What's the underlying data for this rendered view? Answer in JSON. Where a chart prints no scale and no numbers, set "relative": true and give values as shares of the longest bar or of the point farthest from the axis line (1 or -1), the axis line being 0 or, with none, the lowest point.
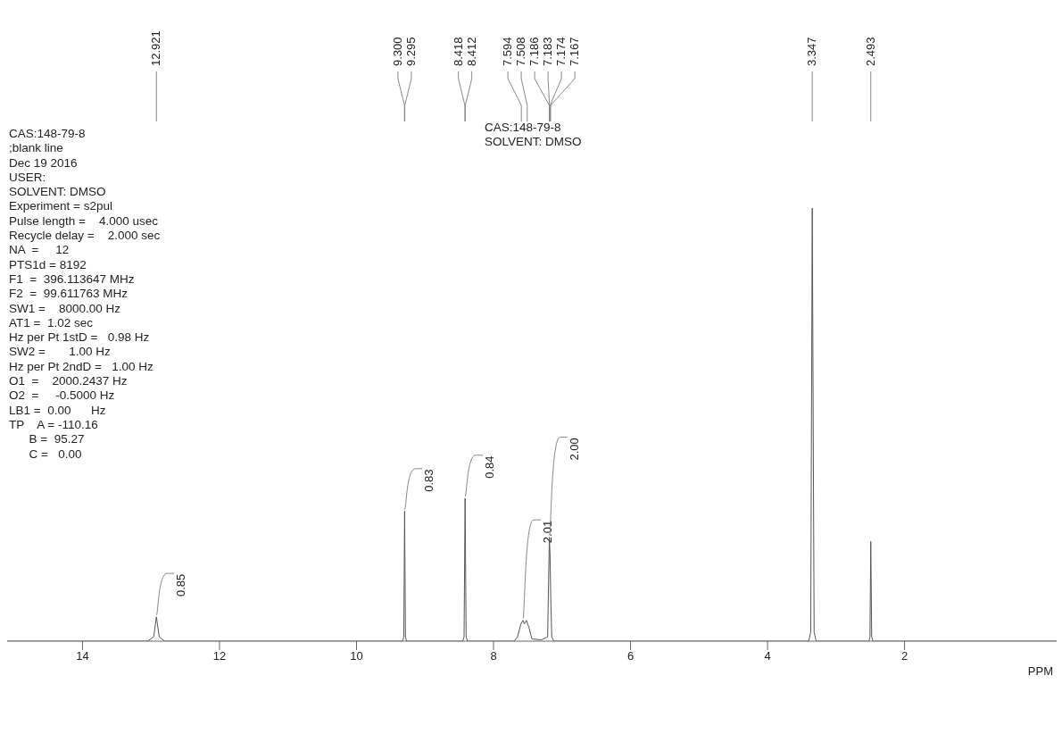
{
  "chart_data": {
    "type": "line",
    "title": "CAS:148-79-8",
    "subtitle": "SOLVENT: DMSO",
    "xlabel": "PPM",
    "relative": true,
    "marker": "none",
    "xlim": [
      15.1,
      -0.22
    ],
    "xticks": [
      14,
      12,
      10,
      8,
      6,
      4,
      2
    ],
    "x": [
      15.1,
      13.05,
      12.96,
      12.921,
      12.88,
      12.8,
      9.33,
      9.31,
      9.298,
      9.285,
      9.27,
      8.45,
      8.43,
      8.415,
      8.4,
      8.38,
      7.7,
      7.65,
      7.6,
      7.57,
      7.55,
      7.52,
      7.48,
      7.44,
      7.3,
      7.21,
      7.185,
      7.175,
      7.165,
      7.15,
      7.12,
      3.4,
      3.37,
      3.347,
      3.32,
      3.29,
      2.52,
      2.505,
      2.493,
      2.48,
      2.46,
      -0.22
    ],
    "series": [
      {
        "color": "#555555",
        "values": [
          0,
          0,
          0.01,
          0.056,
          0.01,
          0,
          0,
          0.01,
          0.3,
          0.01,
          0,
          0,
          0.01,
          0.33,
          0.01,
          0,
          0,
          0.01,
          0.04,
          0.048,
          0.04,
          0.048,
          0.03,
          0.005,
          0.003,
          0.01,
          0.24,
          0.2,
          0.1,
          0.01,
          0,
          0,
          0.02,
          1,
          0.02,
          0,
          0,
          0.01,
          0.23,
          0.01,
          0,
          0
        ]
      }
    ],
    "annotations": [
      "CAS:148-79-8",
      ";blank line",
      "Dec 19 2016",
      "USER:",
      "SOLVENT: DMSO",
      "Experiment = s2pul",
      "Pulse length =    4.000 usec",
      "Recycle delay =    2.000 sec",
      "NA  =     12",
      "PTS1d = 8192",
      "F1  =  396.113647 MHz",
      "F2  =  99.611763 MHz",
      "SW1 =    8000.00 Hz",
      "AT1 =  1.02 sec",
      "Hz per Pt 1stD =   0.98 Hz",
      "SW2 =       1.00 Hz",
      "Hz per Pt 2ndD =   1.00 Hz",
      "O1  =    2000.2437 Hz",
      "O2  =     -0.5000 Hz",
      "LB1 =  0.00      Hz",
      "TP    A = -110.16",
      "      B =  95.27",
      "      C =   0.00",
      {
        "text": "12.921",
        "x": 12.921
      },
      {
        "text": "9.300",
        "x": 9.3
      },
      {
        "text": "9.295",
        "x": 9.295
      },
      {
        "text": "8.418",
        "x": 8.418
      },
      {
        "text": "8.412",
        "x": 8.412
      },
      {
        "text": "7.594",
        "x": 7.594
      },
      {
        "text": "7.508",
        "x": 7.508
      },
      {
        "text": "7.186",
        "x": 7.186
      },
      {
        "text": "7.183",
        "x": 7.183
      },
      {
        "text": "7.174",
        "x": 7.174
      },
      {
        "text": "7.167",
        "x": 7.167
      },
      {
        "text": "3.347",
        "x": 3.347
      },
      {
        "text": "2.493",
        "x": 2.493
      },
      {
        "text": "0.85",
        "x": 12.921,
        "y": 0.056
      },
      {
        "text": "0.83",
        "x": 9.298,
        "y": 0.3
      },
      {
        "text": "0.84",
        "x": 8.415,
        "y": 0.33
      },
      {
        "text": "2.01",
        "x": 7.57,
        "y": 0.048
      },
      {
        "text": "2.00",
        "x": 7.185,
        "y": 0.24
      }
    ]
  }
}
